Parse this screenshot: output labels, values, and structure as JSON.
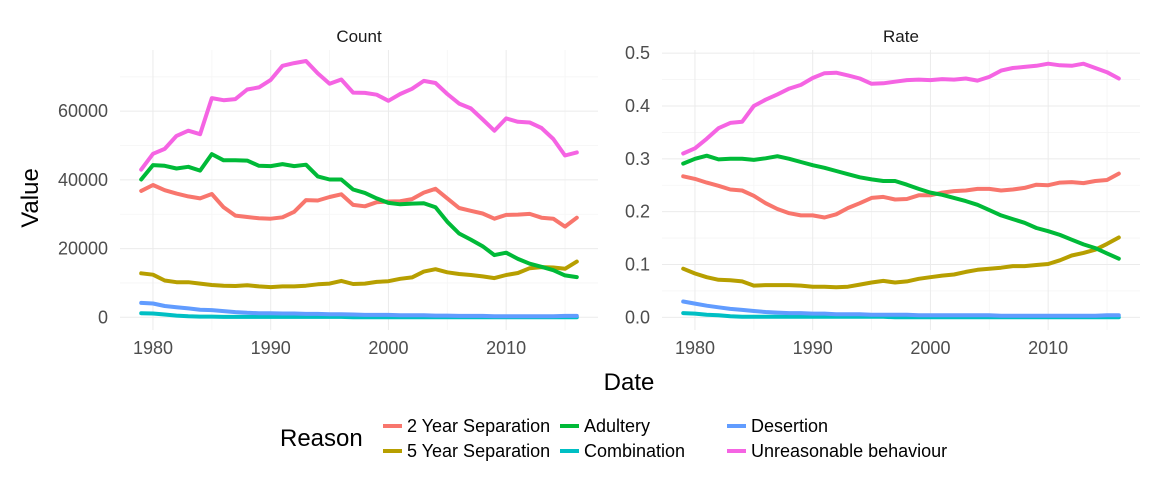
{
  "chart_data": {
    "type": "line",
    "xlabel": "Date",
    "ylabel": "Value",
    "legend": {
      "title": "Reason",
      "position": "bottom",
      "items": [
        {
          "name": "2 Year Separation",
          "color": "#F8766D"
        },
        {
          "name": "5 Year Separation",
          "color": "#B79F00"
        },
        {
          "name": "Adultery",
          "color": "#00BA38"
        },
        {
          "name": "Combination",
          "color": "#00BFC4"
        },
        {
          "name": "Desertion",
          "color": "#619CFF"
        },
        {
          "name": "Unreasonable behaviour",
          "color": "#F564E3"
        }
      ]
    },
    "x": [
      1979,
      1980,
      1981,
      1982,
      1983,
      1984,
      1985,
      1986,
      1987,
      1988,
      1989,
      1990,
      1991,
      1992,
      1993,
      1994,
      1995,
      1996,
      1997,
      1998,
      1999,
      2000,
      2001,
      2002,
      2003,
      2004,
      2005,
      2006,
      2007,
      2008,
      2009,
      2010,
      2011,
      2012,
      2013,
      2014,
      2015,
      2016
    ],
    "panels": [
      {
        "title": "Count",
        "xlim": [
          1977.2,
          2017.8
        ],
        "x_ticks": [
          "1980",
          "1990",
          "2000",
          "2010"
        ],
        "ylim": [
          -3700,
          77800
        ],
        "y_ticks": [
          "0",
          "20000",
          "40000",
          "60000"
        ],
        "series": [
          {
            "name": "2 Year Separation",
            "color": "#F8766D",
            "values": [
              36800,
              38500,
              37000,
              36000,
              35200,
              34600,
              35900,
              32000,
              29600,
              29200,
              28800,
              28700,
              29100,
              30700,
              34100,
              34000,
              35000,
              35800,
              32700,
              32300,
              33500,
              33700,
              33800,
              34400,
              36300,
              37400,
              34600,
              31800,
              31000,
              30200,
              28700,
              29800,
              29900,
              30100,
              29000,
              28700,
              26400,
              29000
            ]
          },
          {
            "name": "5 Year Separation",
            "color": "#B79F00",
            "values": [
              12800,
              12400,
              10700,
              10200,
              10200,
              9800,
              9400,
              9200,
              9100,
              9300,
              9000,
              8800,
              9000,
              9000,
              9200,
              9600,
              9800,
              10600,
              9700,
              9800,
              10300,
              10500,
              11200,
              11600,
              13300,
              14000,
              13100,
              12600,
              12300,
              11900,
              11400,
              12300,
              12900,
              14300,
              14600,
              14500,
              14100,
              16200
            ]
          },
          {
            "name": "Adultery",
            "color": "#00BA38",
            "values": [
              40100,
              44300,
              44100,
              43300,
              43800,
              42700,
              47500,
              45700,
              45700,
              45600,
              44100,
              44000,
              44600,
              44000,
              44400,
              41000,
              40100,
              40100,
              37200,
              36200,
              34600,
              33300,
              32900,
              33100,
              33200,
              32000,
              27800,
              24400,
              22600,
              20700,
              18100,
              18800,
              17000,
              15600,
              14700,
              13700,
              12200,
              11700
            ]
          },
          {
            "name": "Combination",
            "color": "#00BFC4",
            "values": [
              1200,
              1100,
              800,
              500,
              300,
              200,
              200,
              100,
              100,
              100,
              100,
              100,
              100,
              100,
              100,
              100,
              100,
              100,
              0,
              0,
              0,
              0,
              0,
              0,
              0,
              0,
              0,
              0,
              0,
              0,
              0,
              0,
              0,
              0,
              0,
              0,
              0,
              0
            ]
          },
          {
            "name": "Desertion",
            "color": "#619CFF",
            "values": [
              4200,
              4000,
              3300,
              2900,
              2600,
              2200,
              2100,
              1800,
              1500,
              1300,
              1200,
              1200,
              1100,
              1100,
              1000,
              1000,
              900,
              900,
              800,
              700,
              700,
              700,
              600,
              600,
              600,
              500,
              500,
              400,
              400,
              400,
              300,
              300,
              300,
              300,
              300,
              300,
              400,
              400
            ]
          },
          {
            "name": "Unreasonable behaviour",
            "color": "#F564E3",
            "values": [
              43000,
              47600,
              49000,
              52800,
              54300,
              53300,
              63800,
              63200,
              63500,
              66300,
              66900,
              69100,
              73200,
              74000,
              74600,
              71000,
              68000,
              69200,
              65400,
              65300,
              64800,
              63000,
              65000,
              66500,
              68800,
              68200,
              65000,
              62200,
              60800,
              57600,
              54300,
              57900,
              56900,
              56700,
              55100,
              51900,
              47100,
              48000
            ]
          }
        ]
      },
      {
        "title": "Rate",
        "xlim": [
          1977.2,
          2017.8
        ],
        "x_ticks": [
          "1980",
          "1990",
          "2000",
          "2010"
        ],
        "ylim": [
          -0.024,
          0.506
        ],
        "y_ticks": [
          "0.0",
          "0.1",
          "0.2",
          "0.3",
          "0.4",
          "0.5"
        ],
        "series": [
          {
            "name": "2 Year Separation",
            "color": "#F8766D",
            "values": [
              0.267,
              0.262,
              0.255,
              0.249,
              0.242,
              0.24,
              0.23,
              0.216,
              0.205,
              0.197,
              0.193,
              0.193,
              0.189,
              0.195,
              0.207,
              0.216,
              0.226,
              0.228,
              0.223,
              0.224,
              0.231,
              0.231,
              0.236,
              0.239,
              0.24,
              0.243,
              0.243,
              0.24,
              0.242,
              0.245,
              0.251,
              0.25,
              0.255,
              0.256,
              0.254,
              0.258,
              0.26,
              0.272
            ]
          },
          {
            "name": "5 Year Separation",
            "color": "#B79F00",
            "values": [
              0.092,
              0.083,
              0.076,
              0.071,
              0.07,
              0.068,
              0.06,
              0.061,
              0.061,
              0.061,
              0.06,
              0.058,
              0.058,
              0.057,
              0.058,
              0.062,
              0.066,
              0.069,
              0.066,
              0.068,
              0.073,
              0.076,
              0.079,
              0.081,
              0.086,
              0.09,
              0.092,
              0.094,
              0.097,
              0.097,
              0.099,
              0.101,
              0.108,
              0.117,
              0.122,
              0.128,
              0.139,
              0.151
            ]
          },
          {
            "name": "Adultery",
            "color": "#00BA38",
            "values": [
              0.291,
              0.3,
              0.306,
              0.299,
              0.3,
              0.3,
              0.298,
              0.301,
              0.305,
              0.3,
              0.294,
              0.288,
              0.283,
              0.277,
              0.271,
              0.265,
              0.261,
              0.258,
              0.258,
              0.251,
              0.243,
              0.236,
              0.232,
              0.226,
              0.22,
              0.213,
              0.203,
              0.193,
              0.186,
              0.179,
              0.169,
              0.163,
              0.156,
              0.147,
              0.138,
              0.131,
              0.121,
              0.111
            ]
          },
          {
            "name": "Combination",
            "color": "#00BFC4",
            "values": [
              0.008,
              0.007,
              0.005,
              0.004,
              0.002,
              0.001,
              0.001,
              0.001,
              0.001,
              0.001,
              0.001,
              0.001,
              0.001,
              0.001,
              0.001,
              0.001,
              0.001,
              0.001,
              0,
              0,
              0,
              0,
              0,
              0,
              0,
              0,
              0,
              0,
              0,
              0,
              0,
              0,
              0,
              0,
              0,
              0,
              0,
              0
            ]
          },
          {
            "name": "Desertion",
            "color": "#619CFF",
            "values": [
              0.03,
              0.026,
              0.022,
              0.019,
              0.016,
              0.014,
              0.012,
              0.01,
              0.009,
              0.008,
              0.008,
              0.007,
              0.007,
              0.006,
              0.006,
              0.006,
              0.005,
              0.005,
              0.005,
              0.005,
              0.004,
              0.004,
              0.004,
              0.004,
              0.004,
              0.004,
              0.004,
              0.003,
              0.003,
              0.003,
              0.003,
              0.003,
              0.003,
              0.003,
              0.003,
              0.003,
              0.004,
              0.004
            ]
          },
          {
            "name": "Unreasonable behaviour",
            "color": "#F564E3",
            "values": [
              0.31,
              0.32,
              0.338,
              0.358,
              0.368,
              0.37,
              0.4,
              0.412,
              0.422,
              0.433,
              0.44,
              0.453,
              0.462,
              0.463,
              0.458,
              0.452,
              0.442,
              0.443,
              0.446,
              0.449,
              0.45,
              0.449,
              0.451,
              0.45,
              0.452,
              0.448,
              0.455,
              0.467,
              0.472,
              0.474,
              0.476,
              0.48,
              0.477,
              0.476,
              0.48,
              0.472,
              0.464,
              0.452
            ]
          }
        ]
      }
    ]
  }
}
